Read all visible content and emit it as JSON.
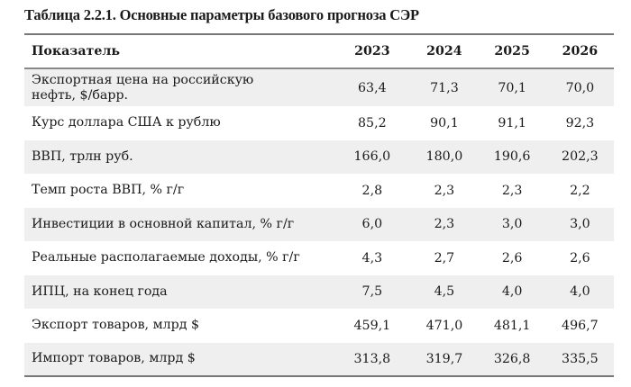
{
  "title": "Таблица 2.2.1. Основные параметры базового прогноза СЭР",
  "table": {
    "headers": [
      "Показатель",
      "2023",
      "2024",
      "2025",
      "2026"
    ],
    "rows": [
      {
        "name": "Экспортная цена на российскую нефть, $/барр.",
        "values": [
          "63,4",
          "71,3",
          "70,1",
          "70,0"
        ]
      },
      {
        "name": "Курс доллара США к рублю",
        "values": [
          "85,2",
          "90,1",
          "91,1",
          "92,3"
        ]
      },
      {
        "name": "ВВП, трлн руб.",
        "values": [
          "166,0",
          "180,0",
          "190,6",
          "202,3"
        ]
      },
      {
        "name": "Темп роста ВВП, % г/г",
        "values": [
          "2,8",
          "2,3",
          "2,3",
          "2,2"
        ]
      },
      {
        "name": "Инвестиции в основной капитал, % г/г",
        "values": [
          "6,0",
          "2,3",
          "3,0",
          "3,0"
        ]
      },
      {
        "name": "Реальные располагаемые доходы, % г/г",
        "values": [
          "4,3",
          "2,7",
          "2,6",
          "2,6"
        ]
      },
      {
        "name": "ИПЦ, на конец года",
        "values": [
          "7,5",
          "4,5",
          "4,0",
          "4,0"
        ]
      },
      {
        "name": "Экспорт товаров, млрд $",
        "values": [
          "459,1",
          "471,0",
          "481,1",
          "496,7"
        ]
      },
      {
        "name": "Импорт товаров, млрд $",
        "values": [
          "313,8",
          "319,7",
          "326,8",
          "335,5"
        ]
      }
    ]
  },
  "colors": {
    "stripe": "#efefef",
    "rule": "#777777"
  }
}
